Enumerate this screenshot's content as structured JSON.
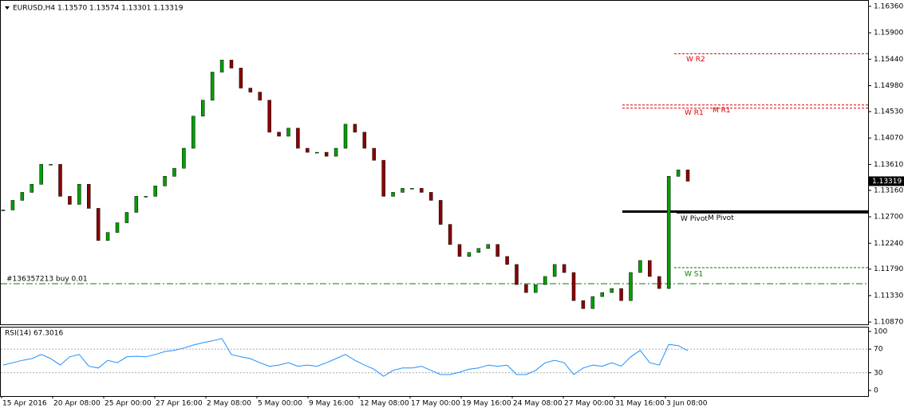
{
  "chart_data": {
    "type": "candlestick",
    "header": "EURUSD,H4  1.13570 1.13574 1.13301 1.13319",
    "closes": [
      1.12819,
      1.12986,
      1.13125,
      1.13265,
      1.13613,
      1.13613,
      1.13056,
      1.12916,
      1.13265,
      1.12847,
      1.12289,
      1.12428,
      1.12596,
      1.12777,
      1.13056,
      1.13056,
      1.13237,
      1.13404,
      1.13544,
      1.13892,
      1.1445,
      1.14728,
      1.15216,
      1.15425,
      1.15286,
      1.14938,
      1.14868,
      1.14728,
      1.14171,
      1.14101,
      1.14241,
      1.13892,
      1.13822,
      1.13822,
      1.13753,
      1.13892,
      1.1431,
      1.14171,
      1.13892,
      1.13683,
      1.13056,
      1.13125,
      1.13195,
      1.13195,
      1.13125,
      1.12986,
      1.12568,
      1.12219,
      1.1201,
      1.1208,
      1.1215,
      1.12219,
      1.1201,
      1.11871,
      1.11522,
      1.11383,
      1.11522,
      1.11662,
      1.11871,
      1.11731,
      1.11243,
      1.11104,
      1.11313,
      1.11383,
      1.11453,
      1.11243,
      1.11731,
      1.1194,
      1.11662,
      1.11453,
      1.13404,
      1.13516,
      1.13319
    ],
    "up_color": "#00a000",
    "down_color": "#8b0000",
    "ylim": [
      1.1083,
      1.1647
    ],
    "yticks": [
      {
        "value": 1.1636,
        "label": "1.16360"
      },
      {
        "value": 1.159,
        "label": "1.15900"
      },
      {
        "value": 1.1544,
        "label": "1.15440"
      },
      {
        "value": 1.1498,
        "label": "1.14980"
      },
      {
        "value": 1.1453,
        "label": "1.14530"
      },
      {
        "value": 1.1407,
        "label": "1.14070"
      },
      {
        "value": 1.1361,
        "label": "1.13610"
      },
      {
        "value": 1.1316,
        "label": "1.13160"
      },
      {
        "value": 1.127,
        "label": "1.12700"
      },
      {
        "value": 1.1224,
        "label": "1.12240"
      },
      {
        "value": 1.1179,
        "label": "1.11790"
      },
      {
        "value": 1.1133,
        "label": "1.11330"
      },
      {
        "value": 1.1087,
        "label": "1.10870"
      }
    ],
    "levels": [
      {
        "name": "W R2",
        "value": 1.15537,
        "color": "#e00000"
      },
      {
        "name": "W R1",
        "value": 1.14645,
        "color": "#e00000"
      },
      {
        "name": "M R1",
        "value": 1.14589,
        "color": "#e00000"
      },
      {
        "name": "W Pivot",
        "value": 1.12791,
        "color": "#000000"
      },
      {
        "name": "M Pivot",
        "value": 1.12779,
        "color": "#000000"
      },
      {
        "name": "W S1",
        "value": 1.11815,
        "color": "#008000"
      }
    ],
    "order": {
      "label": "#136357213 buy 0.01",
      "price": 1.11536,
      "color": "#008000"
    },
    "x_labels": [
      "15 Apr 2016",
      "20 Apr 08:00",
      "25 Apr 00:00",
      "27 Apr 16:00",
      "2 May 08:00",
      "5 May 00:00",
      "9 May 16:00",
      "12 May 08:00",
      "17 May 00:00",
      "19 May 16:00",
      "24 May 08:00",
      "27 May 00:00",
      "31 May 16:00",
      "3 Jun 08:00"
    ],
    "rsi": {
      "title": "RSI(14) 67.3016",
      "color": "#1e90ff",
      "ylim": [
        -9.5,
        108
      ],
      "yticks": [
        100,
        70,
        30,
        0
      ],
      "levels": [
        70,
        30
      ],
      "values": [
        43,
        47,
        51,
        54,
        61,
        54,
        43,
        57,
        61,
        41,
        38,
        51,
        47,
        57,
        58,
        57,
        61,
        66,
        68,
        72,
        77,
        81,
        84,
        88,
        61,
        57,
        54,
        47,
        41,
        43,
        47,
        41,
        43,
        41,
        47,
        54,
        61,
        51,
        43,
        36,
        24,
        34,
        38,
        38,
        41,
        34,
        27,
        27,
        31,
        36,
        38,
        43,
        41,
        43,
        27,
        27,
        34,
        47,
        51,
        47,
        27,
        38,
        43,
        41,
        47,
        41,
        57,
        68,
        47,
        43,
        78,
        76,
        67.3
      ]
    }
  }
}
